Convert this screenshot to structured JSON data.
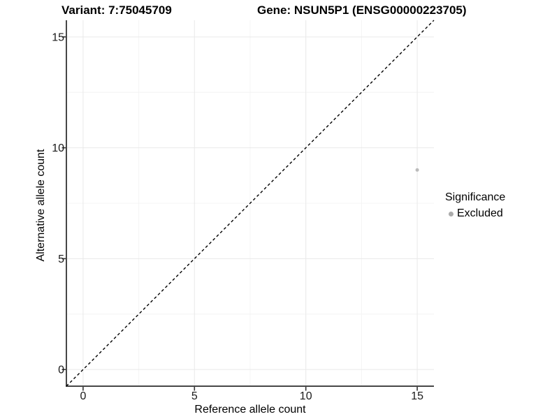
{
  "chart_data": {
    "type": "scatter",
    "titles": {
      "variant": "Variant: 7:75045709",
      "gene": "Gene: NSUN5P1 (ENSG00000223705)"
    },
    "xlabel": "Reference allele count",
    "ylabel": "Alternative allele count",
    "xlim": [
      -0.75,
      15.75
    ],
    "ylim": [
      -0.75,
      15.75
    ],
    "xticks": [
      0,
      5,
      10,
      15
    ],
    "yticks": [
      0,
      5,
      10,
      15
    ],
    "grid": {
      "major": true,
      "minor": true
    },
    "reference_line": {
      "type": "identity",
      "slope": 1,
      "intercept": 0,
      "style": "dashed",
      "color": "#000000"
    },
    "series": [
      {
        "name": "Excluded",
        "color": "#BBBBBB",
        "points": [
          {
            "x": 15,
            "y": 9
          }
        ]
      }
    ],
    "legend": {
      "position": "right",
      "title": "Significance",
      "entries": [
        {
          "label": "Excluded",
          "color": "#ABABAB"
        }
      ]
    }
  },
  "colors": {
    "background": "#FFFFFF",
    "grid_major": "#E9E9E9",
    "grid_minor": "#F4F4F4",
    "axis_line": "#474747",
    "tick_mark": "#333333",
    "tick_label": "#1A1A1A",
    "title_text": "#000000"
  }
}
